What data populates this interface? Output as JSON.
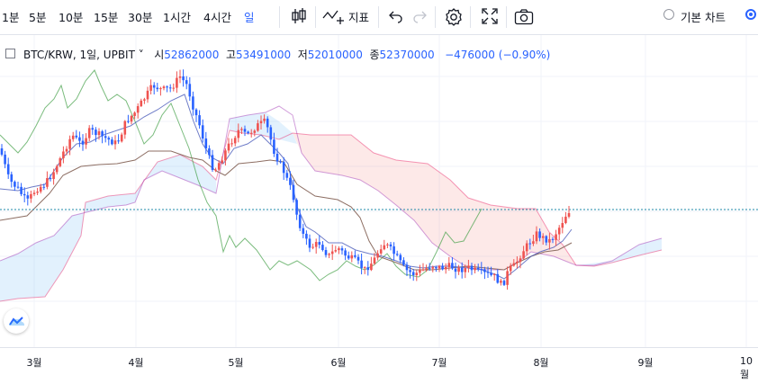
{
  "toolbar": {
    "intervals": [
      {
        "label": "1분",
        "active": false
      },
      {
        "label": "5분",
        "active": false
      },
      {
        "label": "10분",
        "active": false
      },
      {
        "label": "15분",
        "active": false
      },
      {
        "label": "30분",
        "active": false
      },
      {
        "label": "1시간",
        "active": false
      },
      {
        "label": "4시간",
        "active": false
      },
      {
        "label": "일",
        "active": true
      }
    ],
    "indicators_label": "지표",
    "chart_type_basic": "기본 차트"
  },
  "legend": {
    "symbol": "BTC/KRW, 1일, UPBIT",
    "open_label": "시",
    "open": "52862000",
    "high_label": "고",
    "high": "53491000",
    "low_label": "저",
    "low": "52010000",
    "close_label": "종",
    "close": "52370000",
    "change": "−476000 (−0.90%)"
  },
  "x_axis": {
    "labels": [
      "3월",
      "4월",
      "5월",
      "6월",
      "7월",
      "8월",
      "9월",
      "10월"
    ]
  },
  "colors": {
    "up": "#ef5350",
    "down": "#2962ff",
    "accent": "#2962ff"
  },
  "chart_data": {
    "type": "candlestick",
    "symbol": "BTC/KRW",
    "interval": "1일",
    "exchange": "UPBIT",
    "ohlc_last": {
      "open": 52862000,
      "high": 53491000,
      "low": 52010000,
      "close": 52370000
    },
    "change": -476000,
    "change_pct": -0.9,
    "x_labels": [
      "3월",
      "4월",
      "5월",
      "6월",
      "7월",
      "8월",
      "9월",
      "10월"
    ],
    "indicators": [
      "ichimoku"
    ]
  }
}
